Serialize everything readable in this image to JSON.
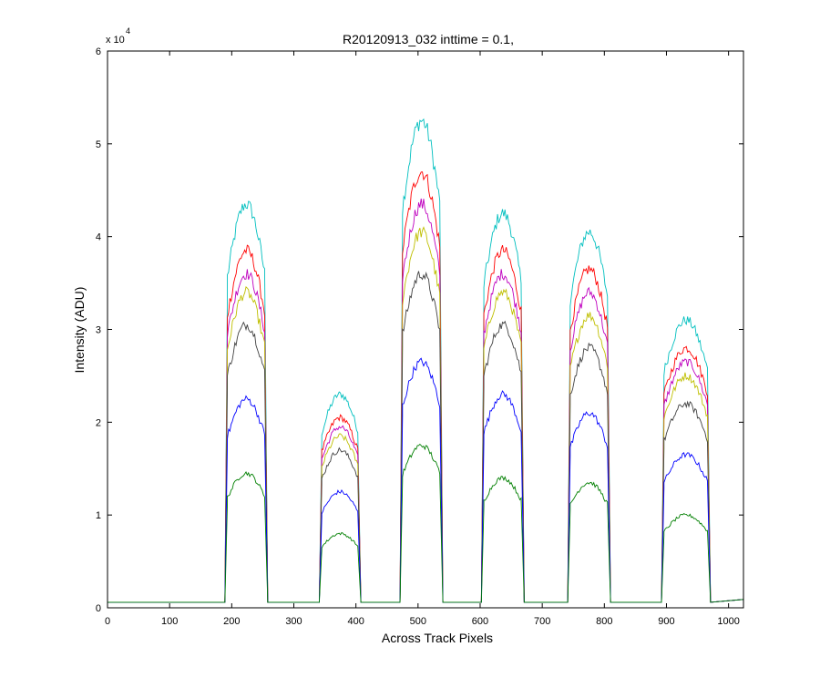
{
  "chart_data": {
    "type": "line",
    "title": "R20120913_032 inttime = 0.1,",
    "xlabel": "Across Track Pixels",
    "ylabel": "Intensity (ADU)",
    "y_exponent_label": "x 10",
    "y_exponent_power": "4",
    "xlim": [
      0,
      1024
    ],
    "ylim": [
      0,
      60000
    ],
    "xticks": [
      0,
      100,
      200,
      300,
      400,
      500,
      600,
      700,
      800,
      900,
      1000
    ],
    "xtick_labels": [
      "0",
      "100",
      "200",
      "300",
      "400",
      "500",
      "600",
      "700",
      "800",
      "900",
      "1000"
    ],
    "yticks": [
      0,
      10000,
      20000,
      30000,
      40000,
      50000,
      60000
    ],
    "ytick_labels": [
      "0",
      "1",
      "2",
      "3",
      "4",
      "5",
      "6"
    ],
    "grid": false,
    "legend": "none",
    "baseline": 600,
    "bands": [
      {
        "start": 193,
        "end": 254
      },
      {
        "start": 345,
        "end": 404
      },
      {
        "start": 475,
        "end": 536
      },
      {
        "start": 606,
        "end": 667
      },
      {
        "start": 745,
        "end": 806
      },
      {
        "start": 896,
        "end": 967
      }
    ],
    "series": [
      {
        "color": "#00bfbf",
        "values": [
          43500,
          23000,
          52500,
          42500,
          40500,
          31000
        ]
      },
      {
        "color": "#ff0000",
        "values": [
          38500,
          20500,
          47000,
          38500,
          36500,
          28000
        ]
      },
      {
        "color": "#bf00bf",
        "values": [
          36000,
          19500,
          43500,
          36000,
          34000,
          26500
        ]
      },
      {
        "color": "#bfbf00",
        "values": [
          34000,
          18500,
          40500,
          34000,
          31500,
          25000
        ]
      },
      {
        "color": "#404040",
        "values": [
          30500,
          17000,
          36000,
          30500,
          28000,
          22000
        ]
      },
      {
        "color": "#0000ff",
        "values": [
          22500,
          12500,
          26500,
          23000,
          21000,
          16500
        ]
      },
      {
        "color": "#007f00",
        "values": [
          14500,
          8000,
          17500,
          14000,
          13500,
          10000
        ]
      }
    ]
  }
}
